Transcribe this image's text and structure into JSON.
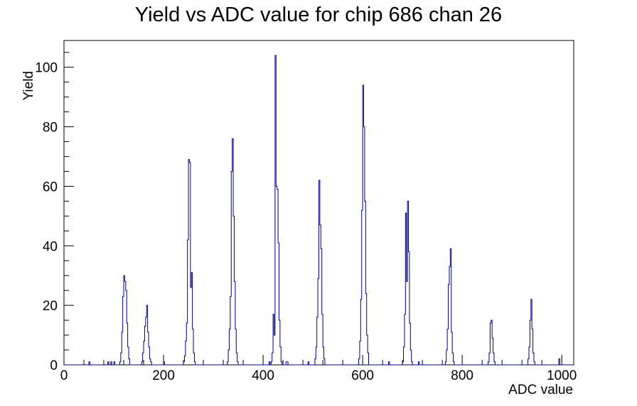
{
  "chart_data": {
    "type": "histogram",
    "title": "Yield vs ADC value for chip 686 chan 26",
    "xlabel": "ADC value",
    "ylabel": "Yield",
    "xlim": [
      0,
      1024
    ],
    "ylim": [
      0,
      109
    ],
    "xticks": [
      0,
      200,
      400,
      600,
      800,
      1000
    ],
    "yticks": [
      0,
      20,
      40,
      60,
      80,
      100
    ],
    "grid": false,
    "legend": "none",
    "line_color": "#000080",
    "bin_width": 2,
    "peaks": [
      {
        "bins": [
          [
            112,
            1
          ],
          [
            114,
            4
          ],
          [
            116,
            11
          ],
          [
            118,
            23
          ],
          [
            120,
            30
          ],
          [
            122,
            28
          ],
          [
            124,
            25
          ],
          [
            126,
            14
          ],
          [
            128,
            6
          ],
          [
            130,
            2
          ]
        ]
      },
      {
        "bins": [
          [
            156,
            1
          ],
          [
            158,
            4
          ],
          [
            160,
            8
          ],
          [
            162,
            13
          ],
          [
            164,
            16
          ],
          [
            166,
            20
          ],
          [
            168,
            11
          ],
          [
            170,
            6
          ],
          [
            172,
            2
          ],
          [
            174,
            1
          ]
        ]
      },
      {
        "bins": [
          [
            240,
            1
          ],
          [
            242,
            3
          ],
          [
            244,
            8
          ],
          [
            246,
            14
          ],
          [
            248,
            42
          ],
          [
            250,
            69
          ],
          [
            252,
            68
          ],
          [
            254,
            26
          ],
          [
            256,
            31
          ],
          [
            258,
            12
          ],
          [
            260,
            4
          ],
          [
            262,
            1
          ]
        ]
      },
      {
        "bins": [
          [
            328,
            1
          ],
          [
            330,
            5
          ],
          [
            332,
            12
          ],
          [
            334,
            23
          ],
          [
            336,
            65
          ],
          [
            338,
            76
          ],
          [
            340,
            50
          ],
          [
            342,
            28
          ],
          [
            344,
            12
          ],
          [
            346,
            4
          ],
          [
            348,
            1
          ]
        ]
      },
      {
        "bins": [
          [
            416,
            1
          ],
          [
            418,
            4
          ],
          [
            420,
            17
          ],
          [
            422,
            10
          ],
          [
            424,
            104
          ],
          [
            426,
            60
          ],
          [
            428,
            59
          ],
          [
            430,
            41
          ],
          [
            432,
            15
          ],
          [
            434,
            6
          ],
          [
            436,
            1
          ]
        ]
      },
      {
        "bins": [
          [
            504,
            2
          ],
          [
            506,
            6
          ],
          [
            508,
            16
          ],
          [
            510,
            29
          ],
          [
            512,
            62
          ],
          [
            514,
            47
          ],
          [
            516,
            39
          ],
          [
            518,
            17
          ],
          [
            520,
            6
          ],
          [
            522,
            2
          ]
        ]
      },
      {
        "bins": [
          [
            592,
            2
          ],
          [
            594,
            8
          ],
          [
            596,
            22
          ],
          [
            598,
            52
          ],
          [
            600,
            94
          ],
          [
            602,
            80
          ],
          [
            604,
            55
          ],
          [
            606,
            24
          ],
          [
            608,
            10
          ],
          [
            610,
            4
          ]
        ]
      },
      {
        "bins": [
          [
            680,
            1
          ],
          [
            682,
            6
          ],
          [
            684,
            17
          ],
          [
            686,
            51
          ],
          [
            688,
            28
          ],
          [
            690,
            55
          ],
          [
            692,
            38
          ],
          [
            694,
            14
          ],
          [
            696,
            5
          ],
          [
            698,
            1
          ]
        ]
      },
      {
        "bins": [
          [
            766,
            1
          ],
          [
            768,
            5
          ],
          [
            770,
            12
          ],
          [
            772,
            27
          ],
          [
            774,
            33
          ],
          [
            776,
            39
          ],
          [
            778,
            11
          ],
          [
            780,
            4
          ],
          [
            782,
            1
          ]
        ]
      },
      {
        "bins": [
          [
            852,
            1
          ],
          [
            854,
            4
          ],
          [
            856,
            14
          ],
          [
            858,
            15
          ],
          [
            860,
            9
          ],
          [
            862,
            4
          ],
          [
            864,
            1
          ]
        ]
      },
      {
        "bins": [
          [
            932,
            2
          ],
          [
            934,
            6
          ],
          [
            936,
            15
          ],
          [
            938,
            22
          ],
          [
            940,
            12
          ],
          [
            942,
            4
          ],
          [
            944,
            1
          ]
        ]
      }
    ],
    "isolated_bins": [
      [
        50,
        1
      ],
      [
        88,
        1
      ],
      [
        94,
        1
      ],
      [
        100,
        1
      ],
      [
        200,
        1
      ],
      [
        412,
        1
      ],
      [
        446,
        1
      ],
      [
        448,
        1
      ],
      [
        490,
        1
      ],
      [
        652,
        1
      ],
      [
        712,
        1
      ],
      [
        994,
        2
      ]
    ]
  }
}
